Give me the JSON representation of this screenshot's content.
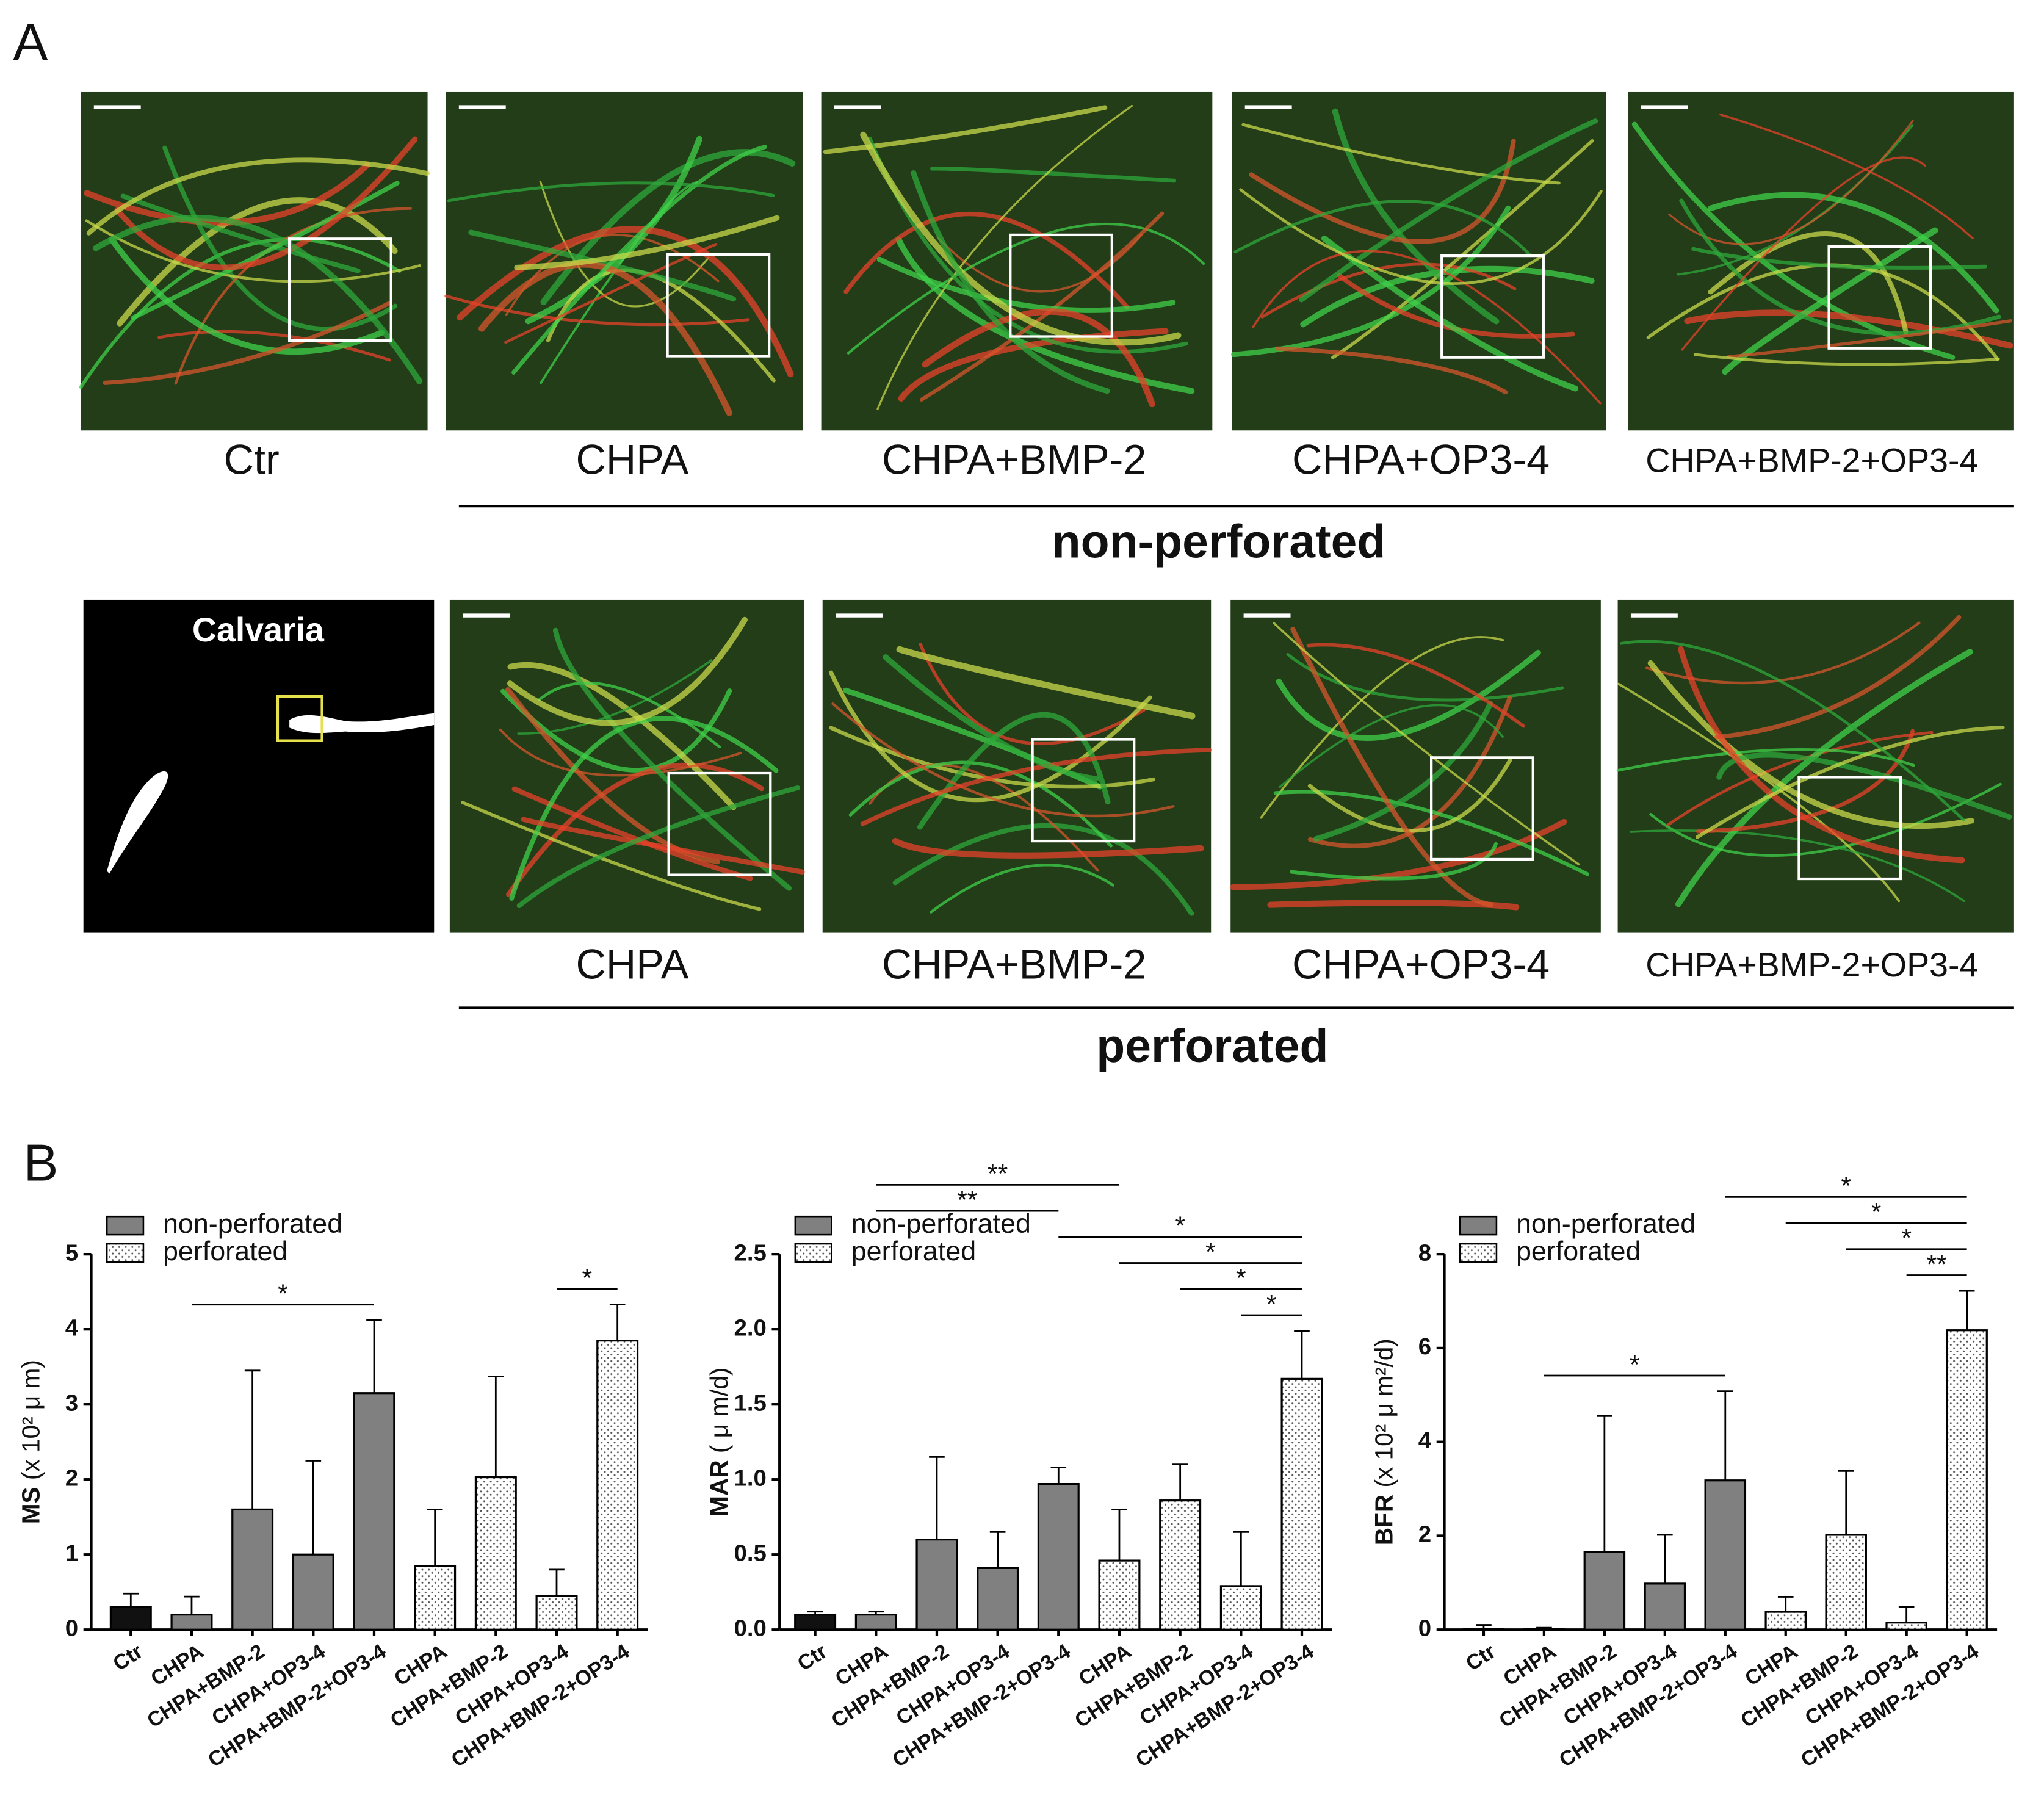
{
  "panel_a": {
    "label": "A",
    "non_perforated_row": {
      "labels": [
        "Ctr",
        "CHPA",
        "CHPA+BMP-2",
        "CHPA+OP3-4",
        "CHPA+BMP-2+OP3-4"
      ],
      "group": "non-perforated"
    },
    "perforated_row": {
      "image_label": "Calvaria",
      "labels": [
        "CHPA",
        "CHPA+BMP-2",
        "CHPA+OP3-4",
        "CHPA+BMP-2+OP3-4"
      ],
      "group": "perforated"
    }
  },
  "panel_b": {
    "label": "B"
  },
  "chart_data": [
    {
      "type": "bar",
      "ylabel": {
        "name": "MS",
        "unit": "(x 10² μ m)"
      },
      "categories": [
        "Ctr",
        "CHPA",
        "CHPA+BMP-2",
        "CHPA+OP3-4",
        "CHPA+BMP-2+OP3-4",
        "CHPA",
        "CHPA+BMP-2",
        "CHPA+OP3-4",
        "CHPA+BMP-2+OP3-4"
      ],
      "ylim": [
        0,
        5
      ],
      "yticks": [
        0,
        1,
        2,
        3,
        4,
        5
      ],
      "legend": "top-left",
      "series": [
        {
          "color": "#111111",
          "values": [
            0.3,
            null,
            null,
            null,
            null,
            null,
            null,
            null,
            null
          ],
          "errors": [
            0.18,
            null,
            null,
            null,
            null,
            null,
            null,
            null,
            null
          ]
        },
        {
          "name": "non-perforated",
          "color": "#808080",
          "values": [
            null,
            0.2,
            1.6,
            1.0,
            3.15,
            null,
            null,
            null,
            null
          ],
          "errors": [
            null,
            0.24,
            1.85,
            1.25,
            0.97,
            null,
            null,
            null,
            null
          ]
        },
        {
          "name": "perforated",
          "color": "#ffffff",
          "pattern": "dots",
          "values": [
            null,
            null,
            null,
            null,
            null,
            0.85,
            2.03,
            0.45,
            3.85
          ],
          "errors": [
            null,
            null,
            null,
            null,
            null,
            0.75,
            1.34,
            0.35,
            0.48
          ]
        }
      ],
      "significance": [
        {
          "from": 1,
          "to": 4,
          "label": "*"
        },
        {
          "from": 7,
          "to": 8,
          "label": "*"
        }
      ]
    },
    {
      "type": "bar",
      "ylabel": {
        "name": "MAR",
        "unit": "( μ m/d)"
      },
      "categories": [
        "Ctr",
        "CHPA",
        "CHPA+BMP-2",
        "CHPA+OP3-4",
        "CHPA+BMP-2+OP3-4",
        "CHPA",
        "CHPA+BMP-2",
        "CHPA+OP3-4",
        "CHPA+BMP-2+OP3-4"
      ],
      "ylim": [
        0,
        2.5
      ],
      "yticks": [
        {
          "value": 0,
          "label": "0.0"
        },
        0.5,
        {
          "value": 1,
          "label": "1.0"
        },
        1.5,
        {
          "value": 2,
          "label": "2.0"
        },
        2.5
      ],
      "legend": "top-left",
      "series": [
        {
          "color": "#111111",
          "values": [
            0.1,
            null,
            null,
            null,
            null,
            null,
            null,
            null,
            null
          ],
          "errors": [
            0.02,
            null,
            null,
            null,
            null,
            null,
            null,
            null,
            null
          ]
        },
        {
          "name": "non-perforated",
          "color": "#808080",
          "values": [
            null,
            0.1,
            0.6,
            0.41,
            0.97,
            null,
            null,
            null,
            null
          ],
          "errors": [
            null,
            0.02,
            0.55,
            0.24,
            0.11,
            null,
            null,
            null,
            null
          ]
        },
        {
          "name": "perforated",
          "color": "#ffffff",
          "pattern": "dots",
          "values": [
            null,
            null,
            null,
            null,
            null,
            0.46,
            0.86,
            0.29,
            1.67
          ],
          "errors": [
            null,
            null,
            null,
            null,
            null,
            0.34,
            0.24,
            0.36,
            0.32
          ]
        }
      ],
      "significance": [
        {
          "from": 7,
          "to": 8,
          "label": "*"
        },
        {
          "from": 6,
          "to": 8,
          "label": "*"
        },
        {
          "from": 5,
          "to": 8,
          "label": "*"
        },
        {
          "from": 4,
          "to": 8,
          "label": "*"
        },
        {
          "from": 1,
          "to": 4,
          "label": "**"
        },
        {
          "from": 1,
          "to": 5,
          "label": "**"
        }
      ]
    },
    {
      "type": "bar",
      "ylabel": {
        "name": "BFR",
        "unit": "(x 10² μ m²/d)"
      },
      "categories": [
        "Ctr",
        "CHPA",
        "CHPA+BMP-2",
        "CHPA+OP3-4",
        "CHPA+BMP-2+OP3-4",
        "CHPA",
        "CHPA+BMP-2",
        "CHPA+OP3-4",
        "CHPA+BMP-2+OP3-4"
      ],
      "ylim": [
        0,
        8
      ],
      "yticks": [
        0,
        2,
        4,
        6,
        8
      ],
      "legend": "top-left",
      "series": [
        {
          "color": "#111111",
          "values": [
            0.02,
            null,
            null,
            null,
            null,
            null,
            null,
            null,
            null
          ],
          "errors": [
            0.08,
            null,
            null,
            null,
            null,
            null,
            null,
            null,
            null
          ]
        },
        {
          "name": "non-perforated",
          "color": "#808080",
          "values": [
            null,
            0.01,
            1.65,
            0.98,
            3.18,
            null,
            null,
            null,
            null
          ],
          "errors": [
            null,
            0.03,
            2.9,
            1.04,
            1.9,
            null,
            null,
            null,
            null
          ]
        },
        {
          "name": "perforated",
          "color": "#ffffff",
          "pattern": "dots",
          "values": [
            null,
            null,
            null,
            null,
            null,
            0.38,
            2.02,
            0.15,
            6.38
          ],
          "errors": [
            null,
            null,
            null,
            null,
            null,
            0.32,
            1.36,
            0.33,
            0.84
          ]
        }
      ],
      "significance": [
        {
          "from": 1,
          "to": 4,
          "label": "*"
        },
        {
          "from": 7,
          "to": 8,
          "label": "**"
        },
        {
          "from": 6,
          "to": 8,
          "label": "*"
        },
        {
          "from": 5,
          "to": 8,
          "label": "*"
        },
        {
          "from": 4,
          "to": 8,
          "label": "*"
        }
      ]
    }
  ]
}
